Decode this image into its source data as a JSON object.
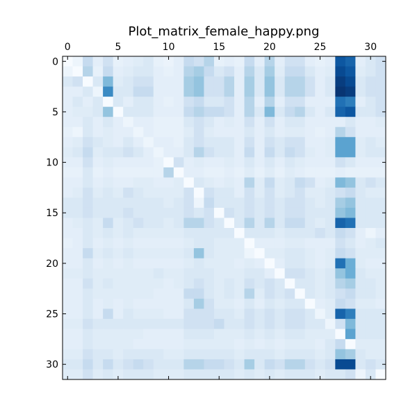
{
  "chart_data": {
    "type": "heatmap",
    "title": "Plot_matrix_female_happy.png",
    "xlabel": "",
    "ylabel": "",
    "rows": 32,
    "cols": 32,
    "xlim": [
      -0.5,
      31.5
    ],
    "ylim": [
      31.5,
      -0.5
    ],
    "x_ticks": [
      0,
      5,
      10,
      15,
      20,
      25,
      30
    ],
    "y_ticks": [
      0,
      5,
      10,
      15,
      20,
      25,
      30
    ],
    "x_tick_labels": [
      "0",
      "5",
      "10",
      "15",
      "20",
      "25",
      "30"
    ],
    "y_tick_labels": [
      "0",
      "5",
      "10",
      "15",
      "20",
      "25",
      "30"
    ],
    "x_axis_position": "top",
    "colormap": [
      "#f7fbff",
      "#deebf7",
      "#c6dbef",
      "#9ecae1",
      "#6baed6",
      "#4292c6",
      "#2171b5",
      "#08519c",
      "#08306b"
    ],
    "grid": false,
    "values": [
      [
        0.0,
        0.05,
        0.25,
        0.1,
        0.2,
        0.08,
        0.1,
        0.12,
        0.15,
        0.08,
        0.06,
        0.1,
        0.25,
        0.2,
        0.3,
        0.08,
        0.1,
        0.08,
        0.25,
        0.1,
        0.3,
        0.1,
        0.2,
        0.2,
        0.1,
        0.08,
        0.1,
        0.85,
        0.8,
        0.1,
        0.15,
        0.2
      ],
      [
        0.05,
        0.0,
        0.3,
        0.08,
        0.25,
        0.1,
        0.12,
        0.15,
        0.15,
        0.1,
        0.08,
        0.1,
        0.3,
        0.35,
        0.25,
        0.15,
        0.2,
        0.1,
        0.3,
        0.15,
        0.35,
        0.12,
        0.25,
        0.25,
        0.15,
        0.1,
        0.12,
        0.9,
        0.85,
        0.12,
        0.15,
        0.2
      ],
      [
        0.15,
        0.2,
        0.0,
        0.15,
        0.45,
        0.12,
        0.15,
        0.2,
        0.2,
        0.1,
        0.1,
        0.1,
        0.35,
        0.4,
        0.2,
        0.2,
        0.3,
        0.1,
        0.35,
        0.15,
        0.4,
        0.15,
        0.3,
        0.3,
        0.2,
        0.1,
        0.15,
        0.95,
        0.9,
        0.15,
        0.2,
        0.2
      ],
      [
        0.1,
        0.1,
        0.15,
        0.05,
        0.65,
        0.15,
        0.15,
        0.25,
        0.25,
        0.1,
        0.1,
        0.1,
        0.35,
        0.4,
        0.2,
        0.2,
        0.3,
        0.1,
        0.35,
        0.15,
        0.4,
        0.15,
        0.3,
        0.3,
        0.2,
        0.1,
        0.15,
        0.98,
        0.95,
        0.15,
        0.2,
        0.2
      ],
      [
        0.1,
        0.15,
        0.1,
        0.15,
        0.0,
        0.15,
        0.1,
        0.15,
        0.15,
        0.1,
        0.08,
        0.1,
        0.2,
        0.25,
        0.15,
        0.15,
        0.2,
        0.1,
        0.3,
        0.1,
        0.3,
        0.1,
        0.2,
        0.2,
        0.1,
        0.1,
        0.1,
        0.75,
        0.7,
        0.1,
        0.15,
        0.2
      ],
      [
        0.1,
        0.12,
        0.12,
        0.15,
        0.4,
        0.0,
        0.15,
        0.15,
        0.15,
        0.1,
        0.1,
        0.1,
        0.25,
        0.3,
        0.25,
        0.25,
        0.2,
        0.1,
        0.3,
        0.15,
        0.45,
        0.15,
        0.25,
        0.3,
        0.15,
        0.1,
        0.15,
        0.8,
        0.85,
        0.15,
        0.15,
        0.2
      ],
      [
        0.1,
        0.1,
        0.15,
        0.1,
        0.15,
        0.1,
        0.05,
        0.1,
        0.1,
        0.08,
        0.08,
        0.08,
        0.15,
        0.2,
        0.15,
        0.1,
        0.12,
        0.1,
        0.2,
        0.1,
        0.2,
        0.1,
        0.15,
        0.15,
        0.1,
        0.1,
        0.1,
        0.1,
        0.15,
        0.1,
        0.1,
        0.12
      ],
      [
        0.08,
        0.05,
        0.15,
        0.1,
        0.12,
        0.1,
        0.1,
        0.05,
        0.1,
        0.08,
        0.08,
        0.08,
        0.12,
        0.2,
        0.12,
        0.1,
        0.1,
        0.1,
        0.15,
        0.1,
        0.15,
        0.1,
        0.12,
        0.12,
        0.1,
        0.08,
        0.1,
        0.3,
        0.2,
        0.1,
        0.1,
        0.1
      ],
      [
        0.1,
        0.12,
        0.2,
        0.15,
        0.12,
        0.1,
        0.15,
        0.1,
        0.05,
        0.1,
        0.1,
        0.08,
        0.15,
        0.2,
        0.15,
        0.15,
        0.15,
        0.1,
        0.2,
        0.1,
        0.2,
        0.15,
        0.2,
        0.2,
        0.1,
        0.1,
        0.12,
        0.55,
        0.55,
        0.12,
        0.15,
        0.12
      ],
      [
        0.12,
        0.15,
        0.25,
        0.12,
        0.15,
        0.15,
        0.2,
        0.15,
        0.1,
        0.05,
        0.1,
        0.1,
        0.15,
        0.3,
        0.2,
        0.15,
        0.15,
        0.1,
        0.25,
        0.1,
        0.25,
        0.15,
        0.25,
        0.2,
        0.12,
        0.1,
        0.12,
        0.55,
        0.55,
        0.12,
        0.15,
        0.15
      ],
      [
        0.1,
        0.1,
        0.2,
        0.1,
        0.12,
        0.1,
        0.1,
        0.1,
        0.1,
        0.08,
        0.0,
        0.2,
        0.1,
        0.12,
        0.1,
        0.1,
        0.12,
        0.1,
        0.15,
        0.1,
        0.15,
        0.1,
        0.15,
        0.12,
        0.1,
        0.1,
        0.1,
        0.2,
        0.15,
        0.1,
        0.1,
        0.1
      ],
      [
        0.08,
        0.08,
        0.15,
        0.08,
        0.1,
        0.08,
        0.08,
        0.08,
        0.08,
        0.08,
        0.3,
        0.0,
        0.1,
        0.1,
        0.08,
        0.08,
        0.1,
        0.08,
        0.12,
        0.08,
        0.12,
        0.08,
        0.12,
        0.1,
        0.08,
        0.08,
        0.08,
        0.1,
        0.08,
        0.08,
        0.08,
        0.08
      ],
      [
        0.1,
        0.1,
        0.15,
        0.1,
        0.12,
        0.1,
        0.1,
        0.12,
        0.12,
        0.1,
        0.1,
        0.12,
        0.0,
        0.15,
        0.12,
        0.1,
        0.12,
        0.1,
        0.3,
        0.12,
        0.25,
        0.12,
        0.15,
        0.25,
        0.2,
        0.1,
        0.12,
        0.45,
        0.4,
        0.15,
        0.2,
        0.15
      ],
      [
        0.1,
        0.12,
        0.2,
        0.12,
        0.15,
        0.12,
        0.2,
        0.15,
        0.12,
        0.12,
        0.12,
        0.12,
        0.2,
        0.0,
        0.2,
        0.15,
        0.15,
        0.1,
        0.2,
        0.12,
        0.2,
        0.12,
        0.15,
        0.2,
        0.12,
        0.12,
        0.15,
        0.2,
        0.25,
        0.15,
        0.12,
        0.12
      ],
      [
        0.15,
        0.15,
        0.2,
        0.15,
        0.15,
        0.15,
        0.15,
        0.15,
        0.15,
        0.15,
        0.12,
        0.15,
        0.2,
        0.05,
        0.25,
        0.15,
        0.15,
        0.15,
        0.2,
        0.15,
        0.2,
        0.15,
        0.2,
        0.2,
        0.15,
        0.12,
        0.15,
        0.35,
        0.4,
        0.15,
        0.15,
        0.15
      ],
      [
        0.15,
        0.15,
        0.2,
        0.15,
        0.15,
        0.15,
        0.2,
        0.15,
        0.15,
        0.15,
        0.15,
        0.15,
        0.2,
        0.15,
        0.2,
        0.0,
        0.2,
        0.15,
        0.2,
        0.15,
        0.2,
        0.15,
        0.2,
        0.2,
        0.15,
        0.15,
        0.15,
        0.4,
        0.45,
        0.15,
        0.15,
        0.15
      ],
      [
        0.1,
        0.12,
        0.15,
        0.12,
        0.25,
        0.12,
        0.15,
        0.2,
        0.15,
        0.15,
        0.12,
        0.15,
        0.3,
        0.3,
        0.2,
        0.15,
        0.0,
        0.15,
        0.3,
        0.15,
        0.3,
        0.15,
        0.25,
        0.25,
        0.15,
        0.12,
        0.15,
        0.8,
        0.75,
        0.15,
        0.15,
        0.15
      ],
      [
        0.1,
        0.1,
        0.15,
        0.12,
        0.15,
        0.12,
        0.15,
        0.12,
        0.12,
        0.12,
        0.12,
        0.12,
        0.15,
        0.15,
        0.15,
        0.15,
        0.15,
        0.0,
        0.15,
        0.15,
        0.15,
        0.12,
        0.15,
        0.15,
        0.15,
        0.2,
        0.15,
        0.25,
        0.2,
        0.1,
        0.05,
        0.1
      ],
      [
        0.08,
        0.1,
        0.15,
        0.1,
        0.12,
        0.1,
        0.12,
        0.1,
        0.1,
        0.1,
        0.1,
        0.1,
        0.12,
        0.15,
        0.15,
        0.12,
        0.12,
        0.12,
        0.0,
        0.1,
        0.1,
        0.1,
        0.12,
        0.12,
        0.1,
        0.1,
        0.1,
        0.2,
        0.15,
        0.1,
        0.12,
        0.15
      ],
      [
        0.1,
        0.1,
        0.25,
        0.12,
        0.15,
        0.12,
        0.15,
        0.12,
        0.12,
        0.12,
        0.12,
        0.12,
        0.15,
        0.4,
        0.15,
        0.12,
        0.12,
        0.12,
        0.05,
        0.0,
        0.12,
        0.12,
        0.15,
        0.15,
        0.12,
        0.1,
        0.12,
        0.25,
        0.2,
        0.12,
        0.12,
        0.12
      ],
      [
        0.1,
        0.1,
        0.15,
        0.1,
        0.12,
        0.1,
        0.12,
        0.1,
        0.1,
        0.1,
        0.1,
        0.1,
        0.12,
        0.15,
        0.12,
        0.12,
        0.12,
        0.1,
        0.12,
        0.1,
        0.0,
        0.1,
        0.15,
        0.15,
        0.12,
        0.1,
        0.12,
        0.75,
        0.5,
        0.12,
        0.1,
        0.1
      ],
      [
        0.12,
        0.12,
        0.15,
        0.12,
        0.12,
        0.12,
        0.12,
        0.12,
        0.12,
        0.15,
        0.12,
        0.12,
        0.15,
        0.15,
        0.15,
        0.12,
        0.12,
        0.12,
        0.15,
        0.15,
        0.1,
        0.0,
        0.2,
        0.2,
        0.15,
        0.12,
        0.15,
        0.4,
        0.5,
        0.15,
        0.12,
        0.12
      ],
      [
        0.1,
        0.1,
        0.2,
        0.12,
        0.15,
        0.12,
        0.12,
        0.12,
        0.12,
        0.12,
        0.1,
        0.12,
        0.15,
        0.2,
        0.15,
        0.12,
        0.15,
        0.12,
        0.2,
        0.15,
        0.2,
        0.15,
        0.0,
        0.15,
        0.15,
        0.12,
        0.15,
        0.3,
        0.35,
        0.15,
        0.15,
        0.12
      ],
      [
        0.1,
        0.1,
        0.15,
        0.12,
        0.12,
        0.12,
        0.12,
        0.12,
        0.12,
        0.1,
        0.1,
        0.1,
        0.25,
        0.25,
        0.15,
        0.12,
        0.15,
        0.12,
        0.3,
        0.12,
        0.2,
        0.15,
        0.2,
        0.0,
        0.15,
        0.12,
        0.15,
        0.2,
        0.25,
        0.15,
        0.15,
        0.12
      ],
      [
        0.1,
        0.1,
        0.15,
        0.1,
        0.12,
        0.1,
        0.12,
        0.1,
        0.1,
        0.1,
        0.1,
        0.1,
        0.15,
        0.35,
        0.2,
        0.12,
        0.12,
        0.1,
        0.15,
        0.1,
        0.15,
        0.12,
        0.15,
        0.15,
        0.0,
        0.1,
        0.12,
        0.25,
        0.2,
        0.12,
        0.12,
        0.1
      ],
      [
        0.1,
        0.1,
        0.15,
        0.1,
        0.25,
        0.1,
        0.15,
        0.12,
        0.12,
        0.12,
        0.1,
        0.1,
        0.2,
        0.2,
        0.2,
        0.15,
        0.15,
        0.12,
        0.2,
        0.15,
        0.2,
        0.15,
        0.2,
        0.2,
        0.15,
        0.05,
        0.12,
        0.8,
        0.7,
        0.15,
        0.15,
        0.15
      ],
      [
        0.12,
        0.12,
        0.2,
        0.15,
        0.15,
        0.15,
        0.15,
        0.15,
        0.15,
        0.15,
        0.15,
        0.15,
        0.2,
        0.2,
        0.2,
        0.25,
        0.15,
        0.15,
        0.2,
        0.15,
        0.2,
        0.15,
        0.2,
        0.2,
        0.15,
        0.15,
        0.05,
        0.2,
        0.45,
        0.15,
        0.15,
        0.15
      ],
      [
        0.1,
        0.1,
        0.15,
        0.12,
        0.12,
        0.12,
        0.12,
        0.12,
        0.1,
        0.1,
        0.1,
        0.1,
        0.15,
        0.15,
        0.15,
        0.12,
        0.12,
        0.12,
        0.15,
        0.12,
        0.15,
        0.12,
        0.15,
        0.15,
        0.12,
        0.12,
        0.12,
        0.0,
        0.55,
        0.15,
        0.15,
        0.15
      ],
      [
        0.1,
        0.1,
        0.15,
        0.12,
        0.12,
        0.12,
        0.12,
        0.1,
        0.1,
        0.1,
        0.1,
        0.1,
        0.12,
        0.12,
        0.12,
        0.12,
        0.12,
        0.1,
        0.12,
        0.1,
        0.12,
        0.1,
        0.12,
        0.12,
        0.12,
        0.1,
        0.15,
        0.25,
        0.0,
        0.12,
        0.12,
        0.12
      ],
      [
        0.12,
        0.12,
        0.2,
        0.15,
        0.15,
        0.12,
        0.15,
        0.15,
        0.15,
        0.15,
        0.12,
        0.12,
        0.15,
        0.15,
        0.15,
        0.15,
        0.15,
        0.12,
        0.15,
        0.15,
        0.15,
        0.12,
        0.15,
        0.15,
        0.15,
        0.12,
        0.15,
        0.4,
        0.35,
        0.15,
        0.12,
        0.12
      ],
      [
        0.15,
        0.15,
        0.25,
        0.15,
        0.25,
        0.15,
        0.2,
        0.25,
        0.2,
        0.15,
        0.15,
        0.15,
        0.3,
        0.3,
        0.25,
        0.25,
        0.2,
        0.15,
        0.35,
        0.15,
        0.25,
        0.2,
        0.3,
        0.3,
        0.2,
        0.15,
        0.2,
        0.9,
        0.9,
        0.15,
        0.2,
        0.15
      ],
      [
        0.12,
        0.12,
        0.2,
        0.12,
        0.15,
        0.12,
        0.15,
        0.15,
        0.15,
        0.12,
        0.12,
        0.12,
        0.15,
        0.15,
        0.15,
        0.15,
        0.15,
        0.12,
        0.15,
        0.12,
        0.15,
        0.12,
        0.15,
        0.15,
        0.15,
        0.12,
        0.15,
        0.15,
        0.2,
        0.05,
        0.15,
        0.0
      ]
    ]
  }
}
